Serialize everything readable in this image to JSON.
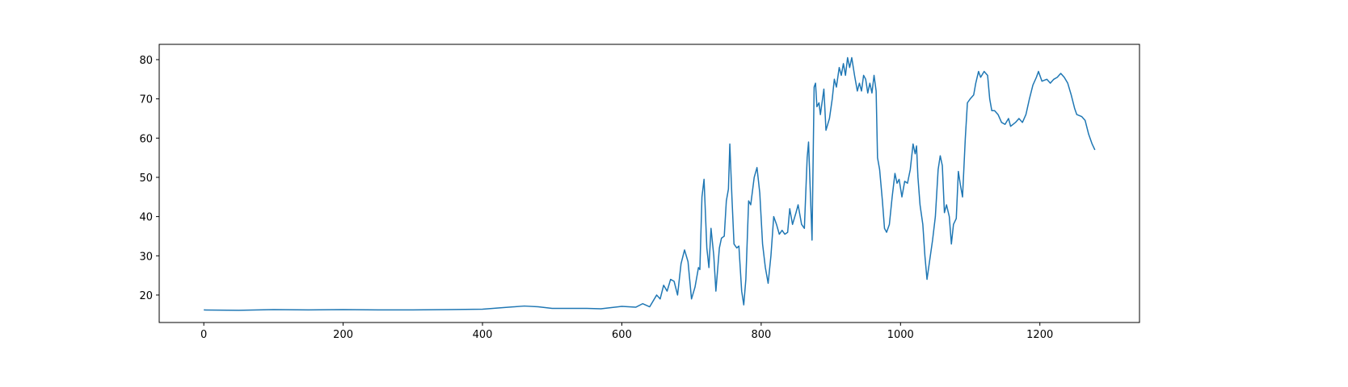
{
  "chart_data": {
    "type": "line",
    "x": [
      0,
      50,
      100,
      150,
      200,
      250,
      300,
      350,
      400,
      430,
      460,
      480,
      500,
      550,
      570,
      600,
      620,
      630,
      640,
      650,
      655,
      660,
      665,
      670,
      675,
      680,
      685,
      690,
      695,
      700,
      705,
      710,
      712,
      715,
      718,
      722,
      725,
      728,
      732,
      735,
      740,
      743,
      747,
      750,
      753,
      755,
      758,
      761,
      765,
      768,
      772,
      775,
      778,
      782,
      785,
      790,
      794,
      798,
      802,
      806,
      810,
      814,
      818,
      822,
      826,
      830,
      834,
      838,
      841,
      845,
      850,
      853,
      858,
      862,
      866,
      868,
      871,
      873,
      876,
      878,
      880,
      883,
      885,
      890,
      893,
      898,
      902,
      905,
      908,
      912,
      915,
      918,
      921,
      924,
      927,
      930,
      934,
      938,
      941,
      944,
      947,
      950,
      953,
      956,
      959,
      962,
      965,
      967,
      970,
      974,
      977,
      980,
      984,
      988,
      992,
      995,
      998,
      1002,
      1006,
      1010,
      1014,
      1018,
      1021,
      1023,
      1025,
      1028,
      1032,
      1035,
      1038,
      1042,
      1046,
      1050,
      1054,
      1057,
      1060,
      1063,
      1066,
      1070,
      1073,
      1076,
      1080,
      1083,
      1086,
      1089,
      1093,
      1096,
      1100,
      1105,
      1108,
      1112,
      1115,
      1120,
      1125,
      1128,
      1131,
      1135,
      1140,
      1145,
      1150,
      1155,
      1158,
      1165,
      1170,
      1175,
      1180,
      1185,
      1190,
      1195,
      1198,
      1203,
      1210,
      1215,
      1220,
      1225,
      1230,
      1235,
      1240,
      1245,
      1250,
      1253,
      1260,
      1265,
      1270,
      1275,
      1279
    ],
    "series": [
      {
        "color": "#1f77b4",
        "values": [
          16.2,
          16.1,
          16.3,
          16.2,
          16.3,
          16.2,
          16.2,
          16.3,
          16.4,
          16.8,
          17.2,
          17.0,
          16.6,
          16.6,
          16.5,
          17.1,
          16.9,
          17.8,
          17.0,
          20.0,
          19.0,
          22.5,
          21.0,
          24.0,
          23.5,
          20.0,
          28.0,
          31.5,
          28.5,
          19.0,
          22.0,
          27.0,
          26.5,
          45.0,
          49.5,
          32.0,
          27.0,
          37.0,
          30.0,
          21.0,
          32.0,
          34.5,
          35.0,
          44.0,
          47.0,
          58.5,
          45.0,
          33.0,
          32.0,
          32.5,
          21.0,
          17.5,
          24.0,
          44.0,
          43.0,
          50.0,
          52.5,
          46.0,
          33.0,
          27.0,
          23.0,
          30.0,
          40.0,
          38.0,
          35.5,
          36.5,
          35.5,
          36.0,
          42.0,
          38.0,
          41.0,
          43.0,
          38.0,
          37.0,
          55.0,
          59.0,
          44.0,
          34.0,
          73.0,
          74.0,
          68.0,
          69.0,
          66.0,
          72.5,
          62.0,
          65.0,
          70.0,
          75.0,
          73.0,
          78.0,
          76.0,
          79.0,
          76.0,
          80.5,
          78.0,
          80.5,
          76.0,
          72.0,
          74.0,
          72.0,
          76.0,
          75.0,
          71.5,
          74.0,
          71.5,
          76.0,
          72.0,
          55.0,
          52.0,
          44.0,
          37.0,
          36.0,
          38.0,
          45.0,
          51.0,
          48.5,
          49.5,
          45.0,
          49.0,
          48.5,
          52.0,
          58.5,
          56.0,
          58.0,
          50.0,
          43.0,
          38.0,
          30.0,
          24.0,
          29.0,
          34.0,
          40.0,
          52.0,
          55.5,
          53.0,
          41.0,
          43.0,
          40.0,
          33.0,
          38.0,
          39.5,
          51.5,
          48.0,
          45.0,
          60.0,
          69.0,
          70.0,
          71.0,
          74.0,
          77.0,
          75.5,
          77.0,
          76.0,
          70.0,
          67.0,
          67.0,
          66.0,
          64.0,
          63.5,
          65.0,
          63.0,
          64.0,
          65.0,
          64.0,
          66.0,
          70.0,
          73.5,
          75.5,
          77.0,
          74.5,
          75.0,
          74.0,
          75.0,
          75.5,
          76.5,
          75.5,
          74.0,
          71.0,
          67.5,
          66.0,
          65.5,
          64.5,
          61.0,
          58.5,
          57.0
        ]
      }
    ],
    "xlim": [
      -64,
      1343
    ],
    "ylim": [
      13.0,
      83.9
    ],
    "xticks": [
      0,
      200,
      400,
      600,
      800,
      1000,
      1200
    ],
    "yticks": [
      20,
      30,
      40,
      50,
      60,
      70,
      80
    ]
  }
}
